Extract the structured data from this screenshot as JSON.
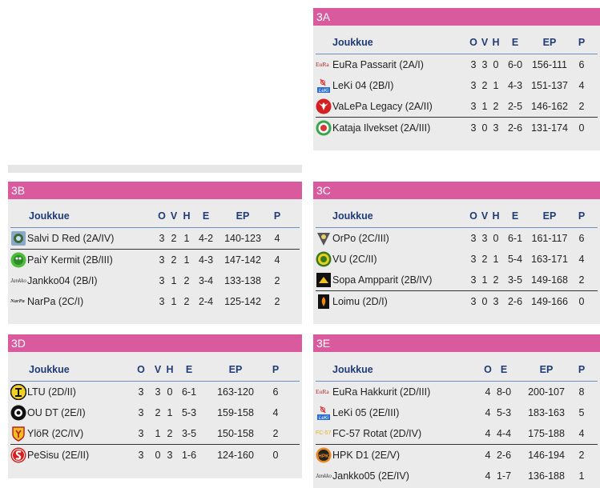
{
  "colors": {
    "header": "#da5a9e",
    "panel": "#ebebeb",
    "heading_text": "#1f3c77"
  },
  "groups": {
    "g3A": {
      "title": "3A",
      "columns": [
        "Joukkue",
        "O",
        "V",
        "H",
        "E",
        "EP",
        "P"
      ],
      "rows": [
        {
          "logo": "eura-logo",
          "team": "EuRa Passarit (2A/I)",
          "o": "3",
          "v": "3",
          "h": "0",
          "e": "6-0",
          "ep": "156-111",
          "p": "6"
        },
        {
          "logo": "leki-logo",
          "team": "LeKi 04 (2B/I)",
          "o": "3",
          "v": "2",
          "h": "1",
          "e": "4-3",
          "ep": "151-137",
          "p": "4"
        },
        {
          "logo": "valepa-logo",
          "team": "VaLePa Legacy (2A/II)",
          "o": "3",
          "v": "1",
          "h": "2",
          "e": "2-5",
          "ep": "146-162",
          "p": "2"
        },
        {
          "logo": "kataja-logo",
          "team": "Kataja Ilvekset (2A/III)",
          "o": "3",
          "v": "0",
          "h": "3",
          "e": "2-6",
          "ep": "131-174",
          "p": "0"
        }
      ]
    },
    "g3B": {
      "title": "3B",
      "columns": [
        "Joukkue",
        "O",
        "V",
        "H",
        "E",
        "EP",
        "P"
      ],
      "rows": [
        {
          "logo": "salvi-logo",
          "team": "Salvi D Red (2A/IV)",
          "o": "3",
          "v": "2",
          "h": "1",
          "e": "4-2",
          "ep": "140-123",
          "p": "4"
        },
        {
          "logo": "paiy-logo",
          "team": "PaiY Kermit (2B/III)",
          "o": "3",
          "v": "2",
          "h": "1",
          "e": "4-3",
          "ep": "147-142",
          "p": "4"
        },
        {
          "logo": "jankko-logo",
          "team": "Jankko04 (2B/I)",
          "o": "3",
          "v": "1",
          "h": "2",
          "e": "3-4",
          "ep": "133-138",
          "p": "2"
        },
        {
          "logo": "narpa-logo",
          "team": "NarPa (2C/I)",
          "o": "3",
          "v": "1",
          "h": "2",
          "e": "2-4",
          "ep": "125-142",
          "p": "2"
        }
      ]
    },
    "g3C": {
      "title": "3C",
      "columns": [
        "Joukkue",
        "O",
        "V",
        "H",
        "E",
        "EP",
        "P"
      ],
      "rows": [
        {
          "logo": "orpo-logo",
          "team": "OrPo (2C/III)",
          "o": "3",
          "v": "3",
          "h": "0",
          "e": "6-1",
          "ep": "161-117",
          "p": "6"
        },
        {
          "logo": "vu-logo",
          "team": "VU (2C/II)",
          "o": "3",
          "v": "2",
          "h": "1",
          "e": "5-4",
          "ep": "163-171",
          "p": "4"
        },
        {
          "logo": "sopa-logo",
          "team": "Sopa Ampparit (2B/IV)",
          "o": "3",
          "v": "1",
          "h": "2",
          "e": "3-5",
          "ep": "149-168",
          "p": "2"
        },
        {
          "logo": "loimu-logo",
          "team": "Loimu (2D/I)",
          "o": "3",
          "v": "0",
          "h": "3",
          "e": "2-6",
          "ep": "149-166",
          "p": "0"
        }
      ]
    },
    "g3D": {
      "title": "3D",
      "columns": [
        "Joukkue",
        "O",
        "V",
        "H",
        "E",
        "EP",
        "P"
      ],
      "rows": [
        {
          "logo": "ltu-logo",
          "team": "LTU (2D/II)",
          "o": "3",
          "v": "3",
          "h": "0",
          "e": "6-1",
          "ep": "163-120",
          "p": "6"
        },
        {
          "logo": "ou-logo",
          "team": "OU DT (2E/I)",
          "o": "3",
          "v": "2",
          "h": "1",
          "e": "5-3",
          "ep": "159-158",
          "p": "4"
        },
        {
          "logo": "ylor-logo",
          "team": "YlöR (2C/IV)",
          "o": "3",
          "v": "1",
          "h": "2",
          "e": "3-5",
          "ep": "150-158",
          "p": "2"
        },
        {
          "logo": "pesisu-logo",
          "team": "PeSisu (2E/II)",
          "o": "3",
          "v": "0",
          "h": "3",
          "e": "1-6",
          "ep": "124-160",
          "p": "0"
        }
      ]
    },
    "g3E": {
      "title": "3E",
      "columns": [
        "Joukkue",
        "O",
        "E",
        "EP",
        "P"
      ],
      "rows": [
        {
          "logo": "eura-logo",
          "team": "EuRa Hakkurit (2D/III)",
          "o": "4",
          "e": "8-0",
          "ep": "200-107",
          "p": "8"
        },
        {
          "logo": "leki-logo",
          "team": "LeKi 05 (2E/III)",
          "o": "4",
          "e": "5-3",
          "ep": "183-163",
          "p": "5"
        },
        {
          "logo": "fc57-logo",
          "team": "FC-57 Rotat (2D/IV)",
          "o": "4",
          "e": "4-4",
          "ep": "175-188",
          "p": "4"
        },
        {
          "logo": "hpk-logo",
          "team": "HPK D1 (2E/V)",
          "o": "4",
          "e": "2-6",
          "ep": "146-194",
          "p": "2"
        },
        {
          "logo": "jankko-logo",
          "team": "Jankko05 (2E/IV)",
          "o": "4",
          "e": "1-7",
          "ep": "136-188",
          "p": "1"
        }
      ]
    }
  },
  "logo_text": {
    "eura": "EuRa",
    "leki": "LeKi",
    "jankko": "Jankko",
    "narpa": "NarPa",
    "fc57": "FC-57",
    "hpk": "HPK"
  }
}
